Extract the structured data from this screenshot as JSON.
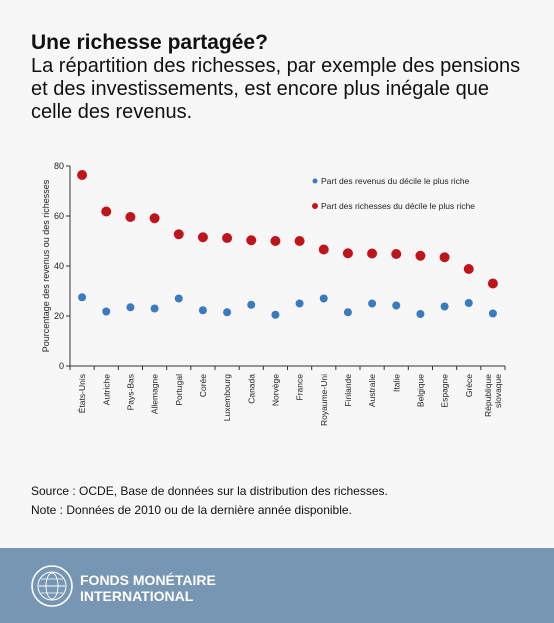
{
  "header": {
    "title": "Une richesse partagée?",
    "subtitle": "La répartition des richesses, par exemple des pensions et des investissements, est encore plus inégale que celle des revenus."
  },
  "chart_data": {
    "type": "scatter",
    "ylabel": "Pourcentage des revenus ou des richesses",
    "xlabel": "",
    "ylim": [
      0,
      80
    ],
    "yticks": [
      0,
      20,
      40,
      60,
      80
    ],
    "grid": false,
    "legend_position": "top-right",
    "categories": [
      "États-Unis",
      "Autriche",
      "Pays-Bas",
      "Allemagne",
      "Portugal",
      "Corée",
      "Luxembourg",
      "Canada",
      "Norvège",
      "France",
      "Royaume-Uni",
      "Finlande",
      "Australie",
      "Italie",
      "Belgique",
      "Espagne",
      "Grèce",
      "République slovaque"
    ],
    "series": [
      {
        "name": "Part des revenus du décile le plus riche",
        "color": "#3a7bbf",
        "values": [
          27.5,
          21.8,
          23.5,
          23.0,
          27.0,
          22.3,
          21.5,
          24.5,
          20.5,
          25.0,
          27.0,
          21.5,
          25.0,
          24.2,
          20.8,
          23.8,
          25.2,
          21.0
        ]
      },
      {
        "name": "Part des richesses du décile le plus riche",
        "color": "#c0141c",
        "values": [
          76.4,
          61.8,
          59.6,
          59.1,
          52.7,
          51.5,
          51.2,
          50.3,
          50.0,
          50.0,
          46.6,
          45.1,
          45.0,
          44.8,
          44.1,
          43.5,
          38.8,
          33.0
        ]
      }
    ]
  },
  "notes": {
    "source": "Source : OCDE, Base de données sur la distribution des richesses.",
    "note": "Note : Données de 2010 ou de la dernière année disponible."
  },
  "footer": {
    "org_line1": "FONDS MONÉTAIRE",
    "org_line2": "INTERNATIONAL",
    "logo_icon": "imf-seal-icon"
  }
}
